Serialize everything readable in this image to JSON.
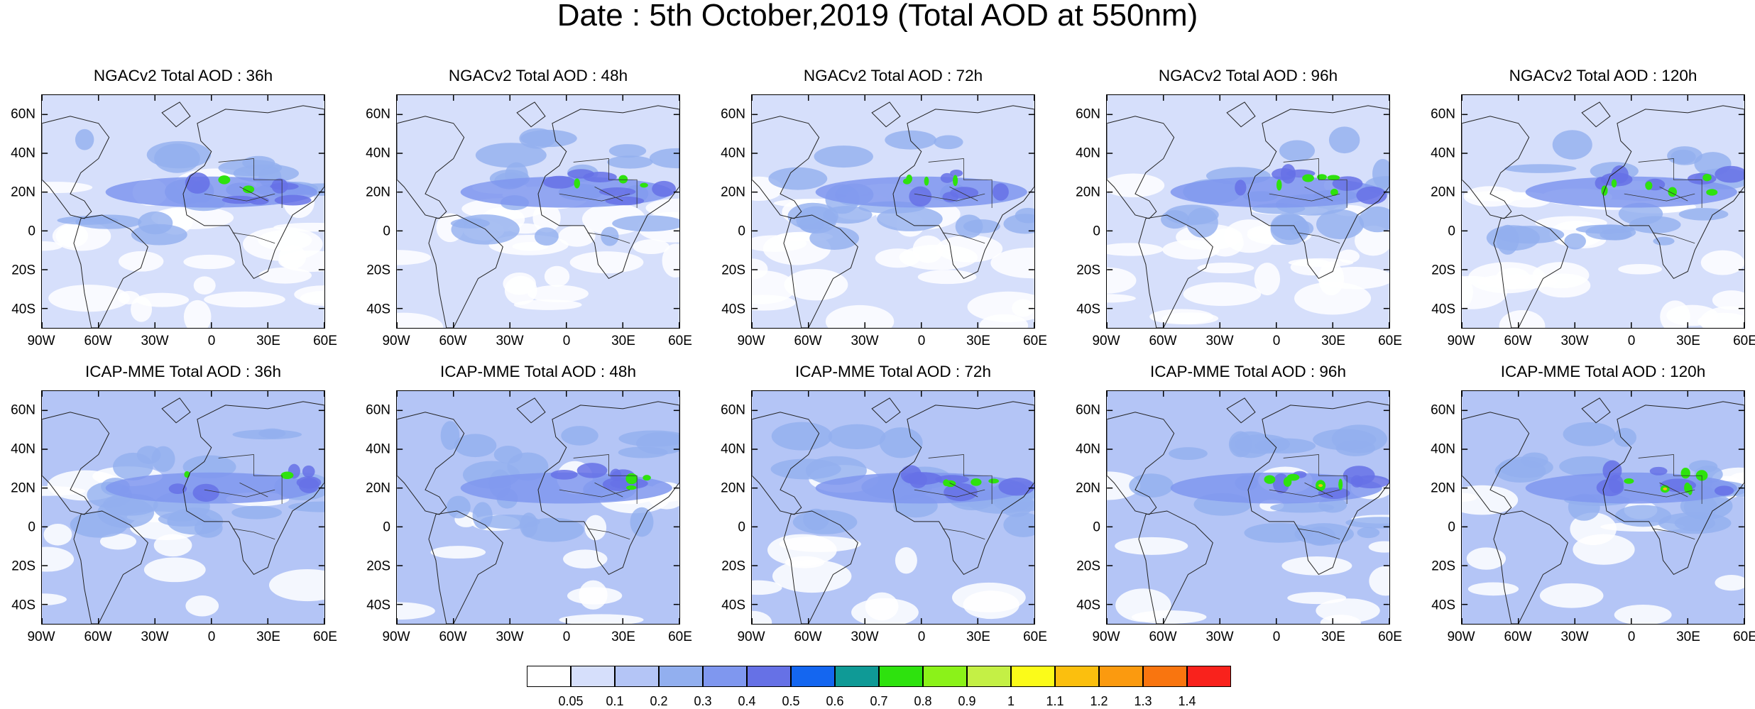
{
  "title": "Date : 5th October,2019 (Total AOD at 550nm)",
  "panels": [
    {
      "title": "NGACv2 Total AOD : 36h",
      "row": 0,
      "col": 0
    },
    {
      "title": "NGACv2 Total AOD : 48h",
      "row": 0,
      "col": 1
    },
    {
      "title": "NGACv2 Total AOD : 72h",
      "row": 0,
      "col": 2
    },
    {
      "title": "NGACv2 Total AOD : 96h",
      "row": 0,
      "col": 3
    },
    {
      "title": "NGACv2 Total AOD : 120h",
      "row": 0,
      "col": 4
    },
    {
      "title": "ICAP-MME Total AOD : 36h",
      "row": 1,
      "col": 0
    },
    {
      "title": "ICAP-MME Total AOD : 48h",
      "row": 1,
      "col": 1
    },
    {
      "title": "ICAP-MME Total AOD : 72h",
      "row": 1,
      "col": 2
    },
    {
      "title": "ICAP-MME Total AOD : 96h",
      "row": 1,
      "col": 3
    },
    {
      "title": "ICAP-MME Total AOD : 120h",
      "row": 1,
      "col": 4
    }
  ],
  "lat_ticks": [
    "60N",
    "40N",
    "20N",
    "0",
    "20S",
    "40S"
  ],
  "lat_values": [
    60,
    40,
    20,
    0,
    -20,
    -40
  ],
  "lon_ticks": [
    "90W",
    "60W",
    "30W",
    "0",
    "30E",
    "60E"
  ],
  "lon_values": [
    -90,
    -60,
    -30,
    0,
    30,
    60
  ],
  "colorbar": {
    "colors": [
      "#ffffff",
      "#d6dffb",
      "#b4c5f6",
      "#92afef",
      "#7f97ef",
      "#6671e6",
      "#1466f0",
      "#0f9a96",
      "#2ee20e",
      "#8bf219",
      "#c4f045",
      "#fbfb19",
      "#fbbf0e",
      "#fb9a0f",
      "#f9750f",
      "#f9221c"
    ],
    "labels": [
      "0.05",
      "0.1",
      "0.2",
      "0.3",
      "0.4",
      "0.5",
      "0.6",
      "0.7",
      "0.8",
      "0.9",
      "1",
      "1.1",
      "1.2",
      "1.3",
      "1.4"
    ]
  }
}
